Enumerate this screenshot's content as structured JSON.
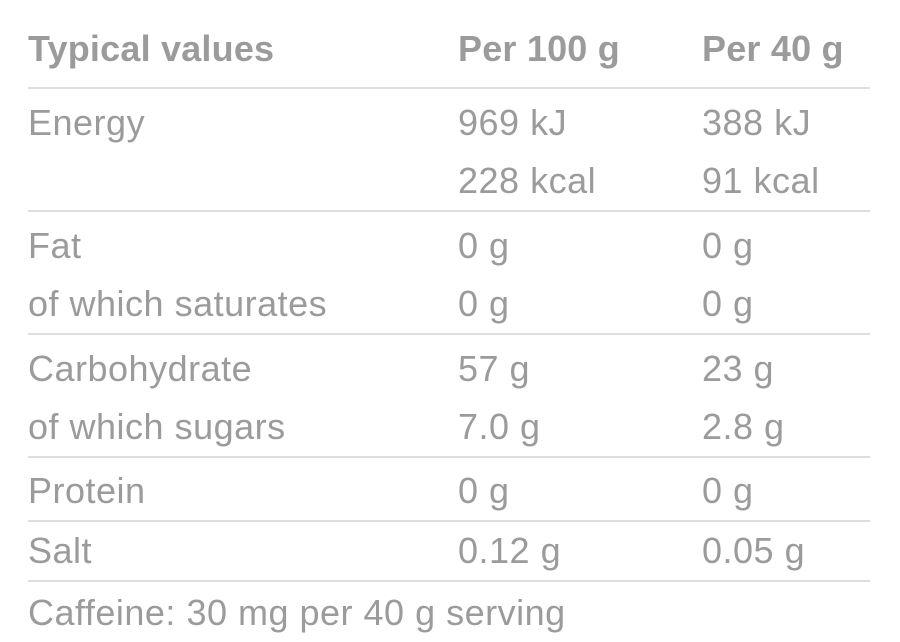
{
  "colors": {
    "background": "#ffffff",
    "text": "#9b9b9b",
    "divider": "#dedede"
  },
  "table": {
    "title": "Typical values",
    "columns": [
      "Per 100 g",
      "Per 40 g"
    ],
    "groups": [
      {
        "name": "energy",
        "rows": [
          {
            "label": "Energy",
            "per100": "969 kJ",
            "per40": "388 kJ"
          },
          {
            "label": "",
            "per100": "228 kcal",
            "per40": "91 kcal"
          }
        ]
      },
      {
        "name": "fat",
        "rows": [
          {
            "label": "Fat",
            "per100": "0 g",
            "per40": "0 g"
          },
          {
            "label": "of which saturates",
            "per100": "0 g",
            "per40": "0 g"
          }
        ]
      },
      {
        "name": "carbohydrate",
        "rows": [
          {
            "label": "Carbohydrate",
            "per100": "57 g",
            "per40": "23 g"
          },
          {
            "label": "of which sugars",
            "per100": "7.0 g",
            "per40": "2.8 g"
          }
        ]
      },
      {
        "name": "protein",
        "rows": [
          {
            "label": "Protein",
            "per100": "0 g",
            "per40": "0 g"
          }
        ]
      },
      {
        "name": "salt",
        "rows": [
          {
            "label": "Salt",
            "per100": "0.12 g",
            "per40": "0.05 g"
          }
        ]
      }
    ],
    "footnote": "Caffeine: 30 mg per 40 g serving"
  }
}
